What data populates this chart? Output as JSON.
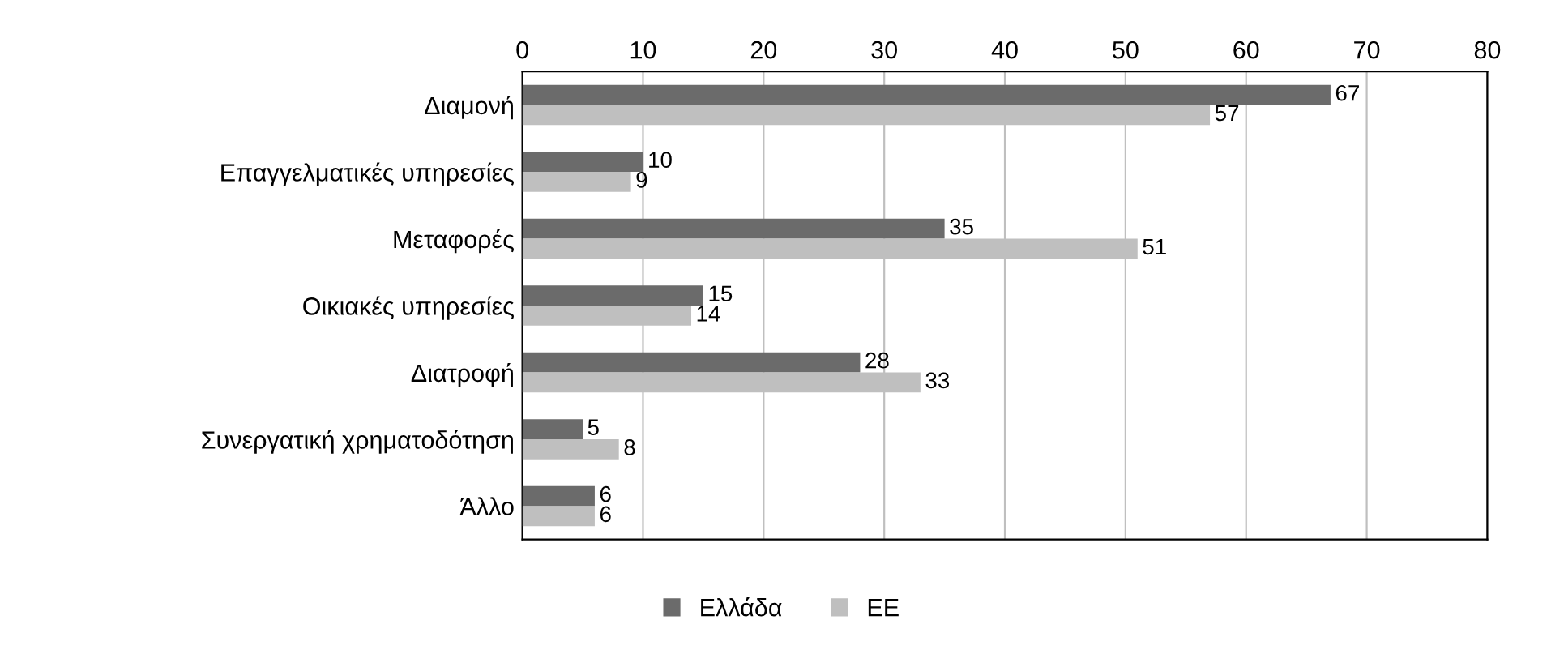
{
  "chart_data": {
    "type": "bar",
    "orientation": "horizontal",
    "categories": [
      "Διαμονή",
      "Επαγγελματικές υπηρεσίες",
      "Μεταφορές",
      "Οικιακές υπηρεσίες",
      "Διατροφή",
      "Συνεργατική χρηματοδότηση",
      "Άλλο"
    ],
    "series": [
      {
        "name": "Ελλάδα",
        "color": "#6b6b6b",
        "values": [
          67,
          10,
          35,
          15,
          28,
          5,
          6
        ]
      },
      {
        "name": "ΕΕ",
        "color": "#bfbfbf",
        "values": [
          57,
          9,
          51,
          14,
          33,
          8,
          6
        ]
      }
    ],
    "xlim": [
      0,
      80
    ],
    "xticks": [
      0,
      10,
      20,
      30,
      40,
      50,
      60,
      70,
      80
    ],
    "grid": "x",
    "data_labels": true,
    "legend": "bottom"
  }
}
